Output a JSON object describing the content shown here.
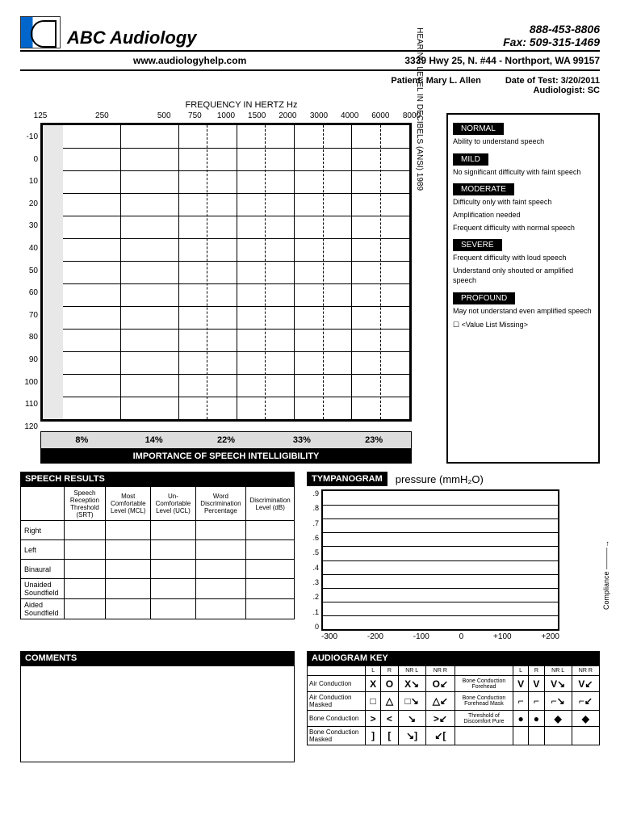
{
  "header": {
    "company": "ABC Audiology",
    "phone": "888-453-8806",
    "fax": "Fax: 509-315-1469",
    "website": "www.audiologyhelp.com",
    "address": "3339 Hwy 25, N. #44 - Northport, WA 99157"
  },
  "patient": {
    "name_label": "Patient: Mary L. Allen",
    "date_label": "Date of Test: 3/20/2011",
    "audiologist_label": "Audiologist:  SC"
  },
  "audiogram": {
    "freq_title": "FREQUENCY IN HERTZ Hz",
    "x_ticks": [
      "125",
      "250",
      "500",
      "750",
      "1000",
      "1500",
      "2000",
      "3000",
      "4000",
      "6000",
      "8000"
    ],
    "x_positions_pct": [
      0,
      16.6,
      33.3,
      41.6,
      50,
      58.3,
      66.6,
      75,
      83.3,
      91.6,
      100
    ],
    "y_ticks": [
      "-10",
      "0",
      "10",
      "20",
      "30",
      "40",
      "50",
      "60",
      "70",
      "80",
      "90",
      "100",
      "110",
      "120"
    ],
    "y_axis_label": "HEARING LEVEL IN DECIBELS (ANSI) 1989",
    "solid_vlines_pct": [
      16.6,
      33.3,
      50,
      66.6,
      83.3
    ],
    "dashed_vlines_pct": [
      41.6,
      58.3,
      75,
      91.6
    ],
    "pct_values": [
      "8%",
      "14%",
      "22%",
      "33%",
      "23%"
    ],
    "pct_widths_pct": [
      22,
      17,
      22,
      19,
      20
    ],
    "importance_label": "IMPORTANCE OF SPEECH INTELLIGIBILITY",
    "border_color": "#000000",
    "grid_color": "#000000",
    "background": "#ffffff"
  },
  "legend": {
    "items": [
      {
        "label": "NORMAL",
        "lines": [
          "Ability to understand speech"
        ]
      },
      {
        "label": "MILD",
        "lines": [
          "No significant difficulty with faint speech"
        ]
      },
      {
        "label": "MODERATE",
        "lines": [
          "Difficulty only with faint speech",
          "Amplification needed",
          "Frequent difficulty with normal speech"
        ]
      },
      {
        "label": "SEVERE",
        "lines": [
          "Frequent difficulty with loud speech",
          "Understand only shouted or amplified speech"
        ]
      },
      {
        "label": "PROFOUND",
        "lines": [
          "May not understand even amplified speech"
        ]
      }
    ],
    "missing": "☐ <Value List Missing>"
  },
  "speech": {
    "title": "SPEECH RESULTS",
    "cols": [
      "",
      "Speech Reception Threshold (SRT)",
      "Most Comfortable Level (MCL)",
      "Un-Comfortable Level (UCL)",
      "Word Discrimination Percentage",
      "Discrimination Level (dB)"
    ],
    "rows": [
      "Right",
      "Left",
      "Binaural",
      "Unaided Soundfield",
      "Aided Soundfield"
    ]
  },
  "tymp": {
    "title": "TYMPANOGRAM",
    "pressure_label": "pressure (mmH₂O)",
    "y_ticks": [
      ".9",
      ".8",
      ".7",
      ".6",
      ".5",
      ".4",
      ".3",
      ".2",
      ".1",
      "0"
    ],
    "x_ticks": [
      "-300",
      "-200",
      "-100",
      "0",
      "+100",
      "+200"
    ],
    "compliance_label": "Compliance ———→"
  },
  "comments": {
    "title": "COMMENTS"
  },
  "key": {
    "title": "AUDIOGRAM KEY",
    "header_cells": [
      "L",
      "R",
      "NR L",
      "NR R",
      "",
      "L",
      "R",
      "NR L",
      "NR R"
    ],
    "rows": [
      {
        "l": "Air Conduction",
        "s": [
          "X",
          "O",
          "X↘",
          "O↙"
        ],
        "r": "Bone Conduction Forehead",
        "s2": [
          "V",
          "V",
          "V↘",
          "V↙"
        ]
      },
      {
        "l": "Air Conduction Masked",
        "s": [
          "□",
          "△",
          "□↘",
          "△↙"
        ],
        "r": "Bone Conduction Forehead Mask",
        "s2": [
          "⌐",
          "⌐",
          "⌐↘",
          "⌐↙"
        ]
      },
      {
        "l": "Bone Conduction",
        "s": [
          ">",
          "<",
          "↘",
          ">↙"
        ],
        "r": "Threshold of Discomfort Pure",
        "s2": [
          "●",
          "●",
          "◆",
          "◆"
        ]
      },
      {
        "l": "Bone Conduction Masked",
        "s": [
          "]",
          "[",
          "↘]",
          "↙["
        ],
        "r": "",
        "s2": [
          "",
          "",
          "",
          ""
        ]
      }
    ]
  }
}
